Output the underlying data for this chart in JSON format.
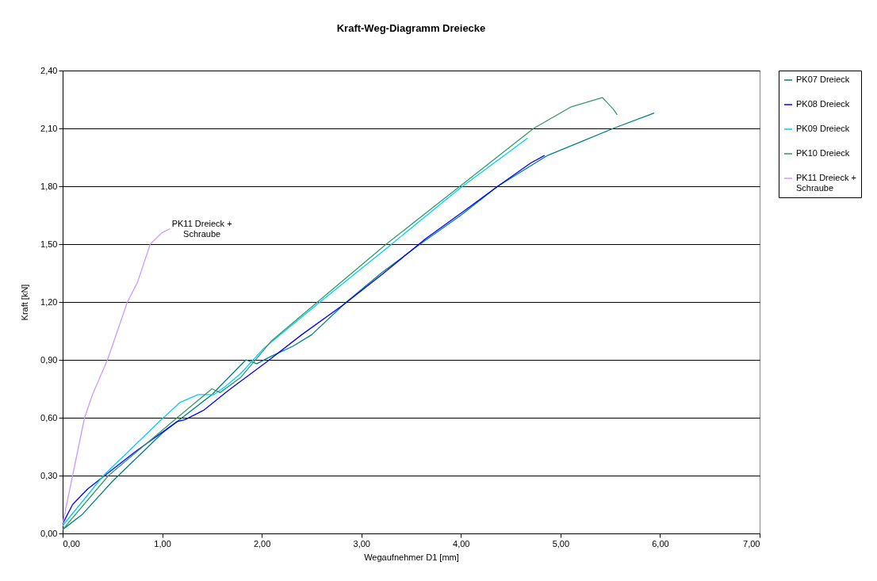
{
  "chart_data": {
    "type": "line",
    "title": "Kraft-Weg-Diagramm Dreiecke",
    "xlabel": "Wegaufnehmer D1 [mm]",
    "ylabel": "Kraft [kN]",
    "xlim": [
      0,
      7
    ],
    "ylim": [
      0,
      2.4
    ],
    "xticks": [
      {
        "value": 0,
        "label": "0,00"
      },
      {
        "value": 1,
        "label": "1,00"
      },
      {
        "value": 2,
        "label": "2,00"
      },
      {
        "value": 3,
        "label": "3,00"
      },
      {
        "value": 4,
        "label": "4,00"
      },
      {
        "value": 5,
        "label": "5,00"
      },
      {
        "value": 6,
        "label": "6,00"
      },
      {
        "value": 7,
        "label": "7,00"
      }
    ],
    "yticks": [
      {
        "value": 0,
        "label": "0,00"
      },
      {
        "value": 0.3,
        "label": "0,30"
      },
      {
        "value": 0.6,
        "label": "0,60"
      },
      {
        "value": 0.9,
        "label": "0,90"
      },
      {
        "value": 1.2,
        "label": "1,20"
      },
      {
        "value": 1.5,
        "label": "1,50"
      },
      {
        "value": 1.8,
        "label": "1,80"
      },
      {
        "value": 2.1,
        "label": "2,10"
      },
      {
        "value": 2.4,
        "label": "2,40"
      }
    ],
    "grid": "y",
    "legend": "right",
    "marker": "none",
    "line_style": "solid",
    "series": [
      {
        "name": "PK07 Dreieck",
        "color": "#008080",
        "x": [
          0,
          0.2,
          0.5,
          1.0,
          1.5,
          1.84,
          1.95,
          2.1,
          2.31,
          2.5,
          2.85,
          3.2,
          3.59,
          4.0,
          4.37,
          4.87,
          5.2,
          5.53,
          5.94
        ],
        "values": [
          0.02,
          0.1,
          0.27,
          0.52,
          0.72,
          0.9,
          0.88,
          0.92,
          0.97,
          1.03,
          1.2,
          1.35,
          1.5,
          1.65,
          1.8,
          1.96,
          2.03,
          2.1,
          2.18
        ]
      },
      {
        "name": "PK08 Dreieck",
        "color": "#0000ff",
        "x": [
          0,
          0.1,
          0.25,
          0.72,
          1.15,
          1.23,
          1.42,
          1.66,
          2.05,
          2.4,
          2.83,
          3.2,
          3.65,
          4.0,
          4.37,
          4.7,
          4.84
        ],
        "values": [
          0.05,
          0.15,
          0.23,
          0.42,
          0.58,
          0.59,
          0.64,
          0.74,
          0.89,
          1.03,
          1.19,
          1.34,
          1.53,
          1.66,
          1.8,
          1.92,
          1.96
        ]
      },
      {
        "name": "PK09 Dreieck",
        "color": "#00ccff",
        "x": [
          0,
          0.41,
          0.99,
          1.18,
          1.36,
          1.52,
          1.63,
          1.79,
          2.02,
          2.56,
          3.28,
          3.99,
          4.67
        ],
        "values": [
          0.04,
          0.3,
          0.59,
          0.68,
          0.72,
          0.72,
          0.76,
          0.83,
          0.96,
          1.19,
          1.49,
          1.79,
          2.05
        ]
      },
      {
        "name": "PK10 Dreieck",
        "color": "#339966",
        "x": [
          0,
          0.46,
          1.15,
          1.5,
          1.58,
          1.79,
          2.1,
          2.56,
          3.25,
          3.99,
          4.73,
          5.1,
          5.42,
          5.53,
          5.57
        ],
        "values": [
          0.02,
          0.3,
          0.6,
          0.75,
          0.73,
          0.81,
          1.0,
          1.2,
          1.5,
          1.8,
          2.1,
          2.21,
          2.26,
          2.2,
          2.17
        ]
      },
      {
        "name": "PK11 Dreieck + Schraube",
        "color": "#cc99ff",
        "x": [
          0,
          0.1,
          0.22,
          0.3,
          0.45,
          0.55,
          0.65,
          0.75,
          0.88,
          1.0,
          1.08
        ],
        "values": [
          0.05,
          0.3,
          0.6,
          0.72,
          0.9,
          1.05,
          1.2,
          1.3,
          1.5,
          1.56,
          1.58
        ]
      }
    ],
    "annotations": [
      {
        "text": "PK11 Dreieck + Schraube",
        "x": 1.08,
        "y": 1.58
      }
    ]
  }
}
